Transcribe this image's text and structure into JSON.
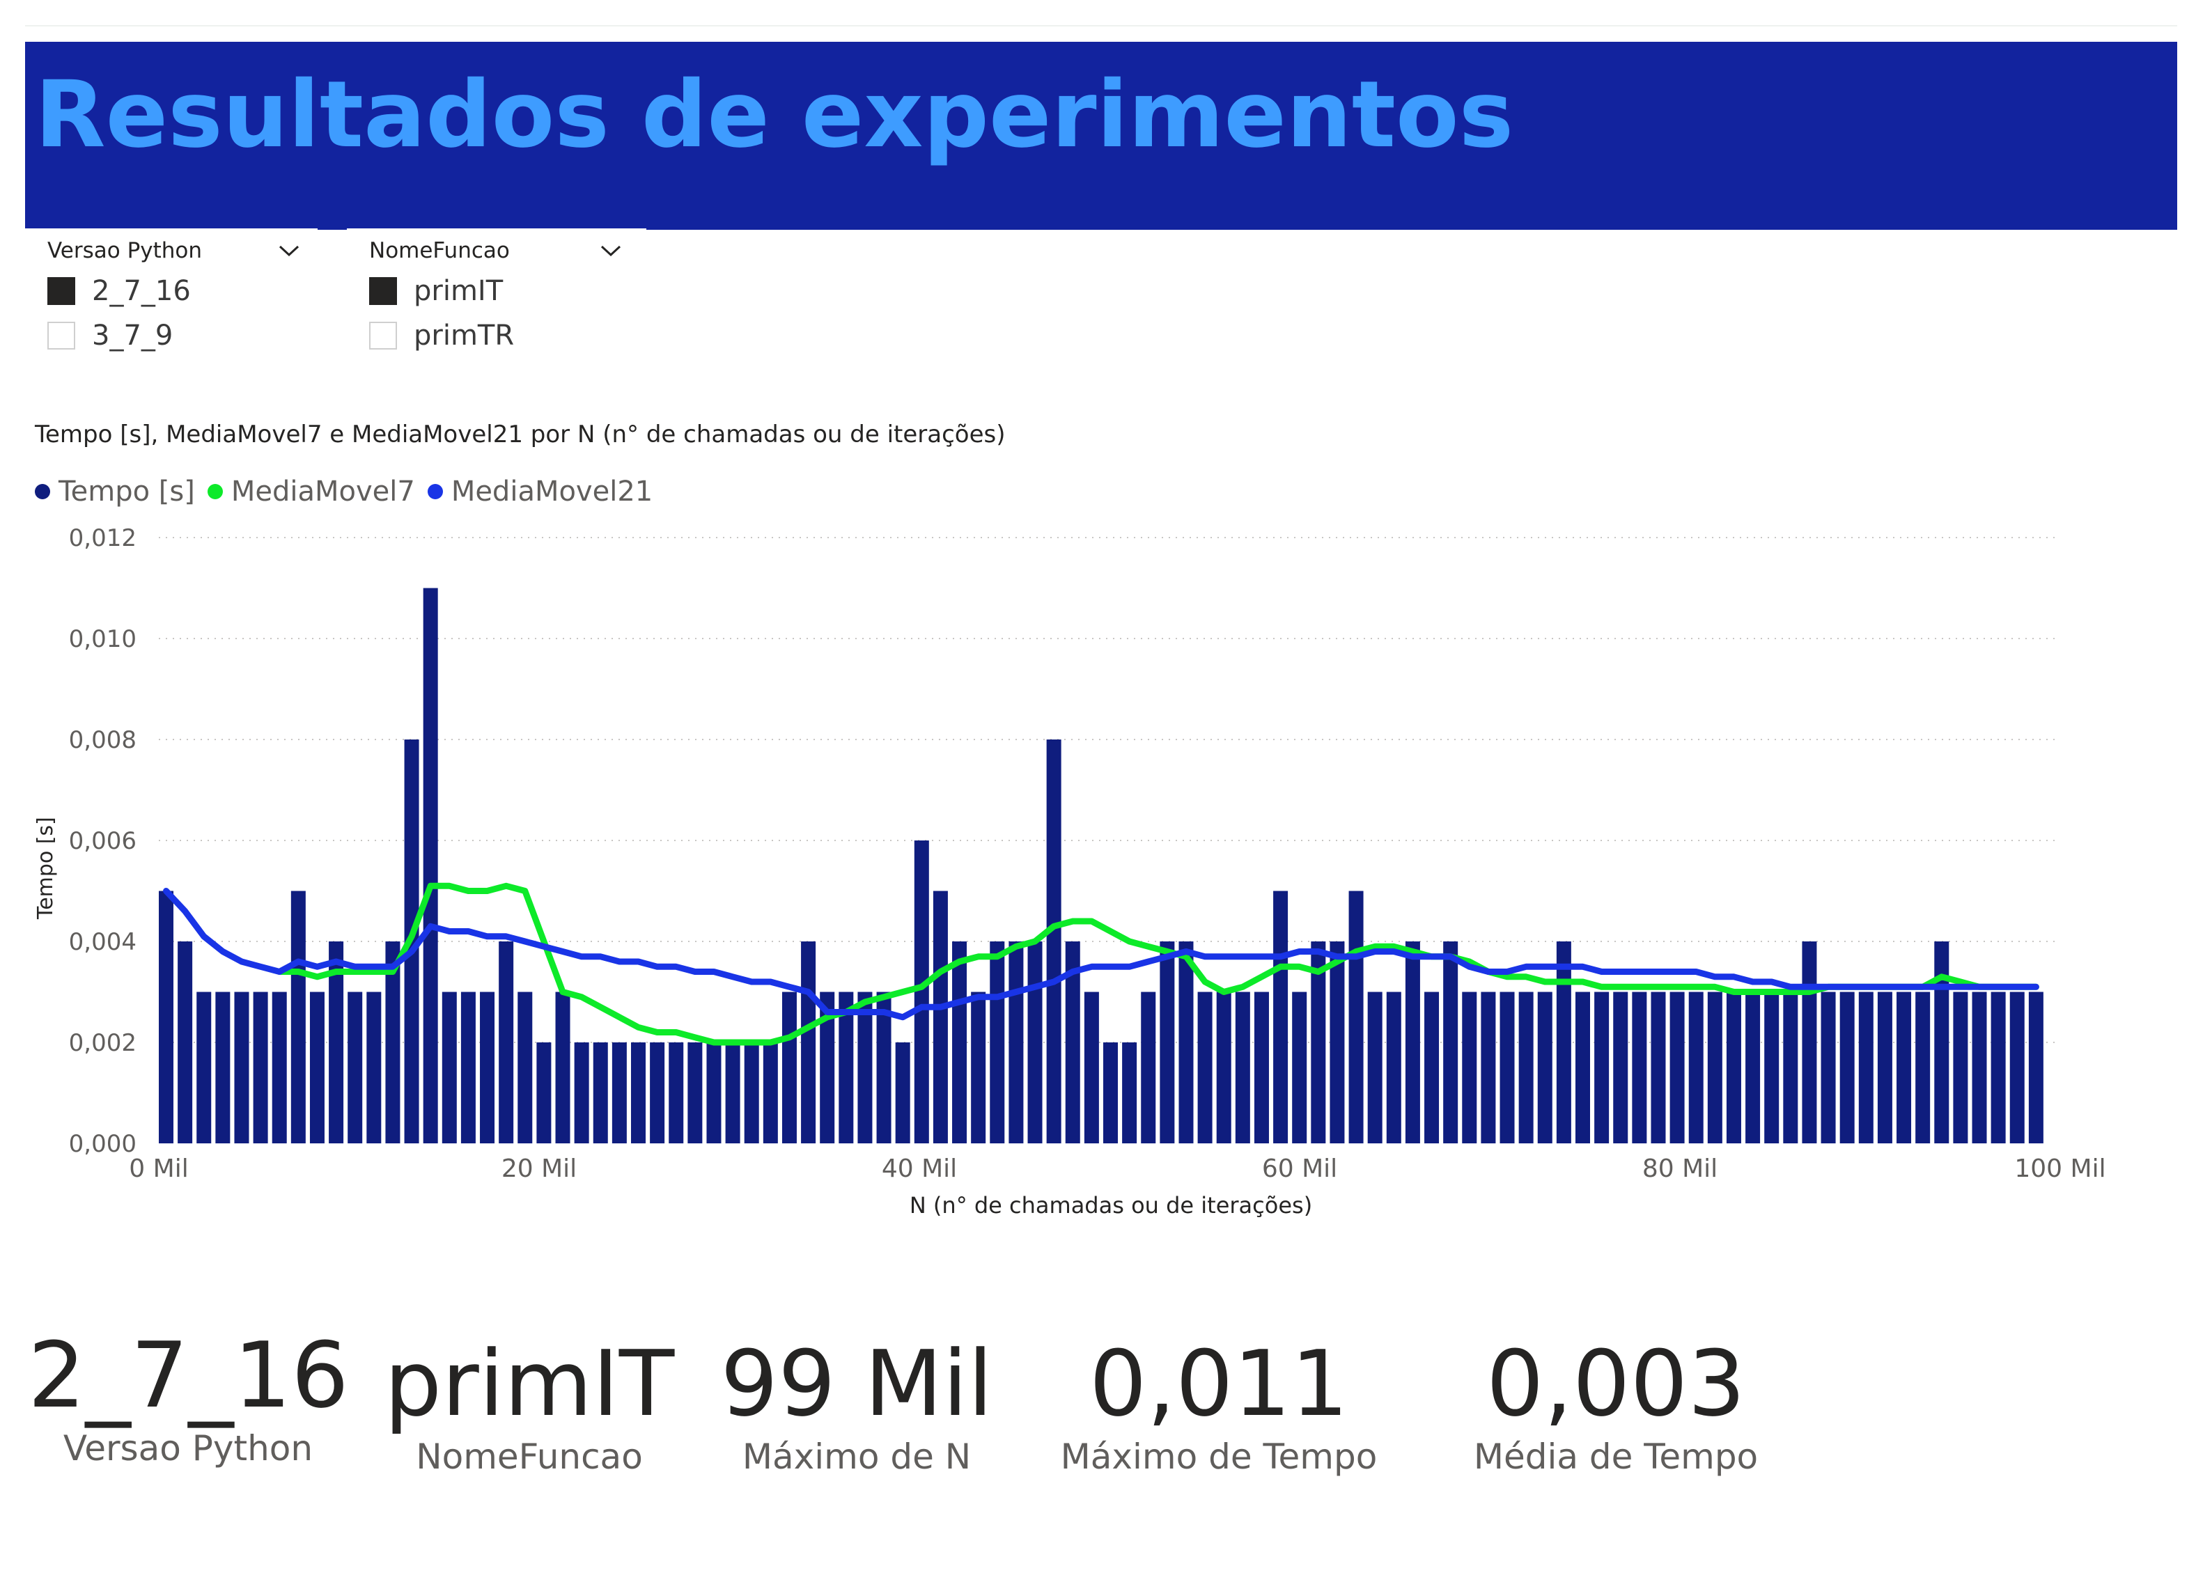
{
  "header": {
    "title": "Resultados de experimentos"
  },
  "slicers": [
    {
      "title": "Versao Python",
      "items": [
        {
          "label": "2_7_16",
          "checked": true
        },
        {
          "label": "3_7_9",
          "checked": false
        }
      ]
    },
    {
      "title": "NomeFuncao",
      "items": [
        {
          "label": "primIT",
          "checked": true
        },
        {
          "label": "primTR",
          "checked": false
        }
      ]
    }
  ],
  "chart": {
    "title": "Tempo [s], MediaMovel7 e MediaMovel21 por N (n° de chamadas ou de iterações)"
  },
  "chart_data": {
    "type": "bar",
    "title": "Tempo [s], MediaMovel7 e MediaMovel21 por N (n° de chamadas ou de iterações)",
    "xlabel": "N (n° de chamadas ou de iterações)",
    "ylabel": "Tempo [s]",
    "xlim": [
      0,
      100000
    ],
    "ylim": [
      0,
      0.012
    ],
    "x_ticks": [
      0,
      20000,
      40000,
      60000,
      80000,
      100000
    ],
    "x_tick_labels": [
      "0 Mil",
      "20 Mil",
      "40 Mil",
      "60 Mil",
      "80 Mil",
      "100 Mil"
    ],
    "y_ticks": [
      0,
      0.002,
      0.004,
      0.006,
      0.008,
      0.01,
      0.012
    ],
    "y_tick_labels": [
      "0,000",
      "0,002",
      "0,004",
      "0,006",
      "0,008",
      "0,010",
      "0,012"
    ],
    "grid": true,
    "legend_position": "top-left",
    "x": [
      0,
      1000,
      2000,
      3000,
      4000,
      5000,
      6000,
      7000,
      8000,
      9000,
      10000,
      11000,
      12000,
      13000,
      14000,
      15000,
      16000,
      17000,
      18000,
      19000,
      20000,
      21000,
      22000,
      23000,
      24000,
      25000,
      26000,
      27000,
      28000,
      29000,
      30000,
      31000,
      32000,
      33000,
      34000,
      35000,
      36000,
      37000,
      38000,
      39000,
      40000,
      41000,
      42000,
      43000,
      44000,
      45000,
      46000,
      47000,
      48000,
      49000,
      50000,
      51000,
      52000,
      53000,
      54000,
      55000,
      56000,
      57000,
      58000,
      59000,
      60000,
      61000,
      62000,
      63000,
      64000,
      65000,
      66000,
      67000,
      68000,
      69000,
      70000,
      71000,
      72000,
      73000,
      74000,
      75000,
      76000,
      77000,
      78000,
      79000,
      80000,
      81000,
      82000,
      83000,
      84000,
      85000,
      86000,
      87000,
      88000,
      89000,
      90000,
      91000,
      92000,
      93000,
      94000,
      95000,
      96000,
      97000,
      98000,
      99000
    ],
    "series": [
      {
        "name": "Tempo [s]",
        "kind": "bar",
        "color": "#0f1d7e",
        "values": [
          0.005,
          0.004,
          0.003,
          0.003,
          0.003,
          0.003,
          0.003,
          0.005,
          0.003,
          0.004,
          0.003,
          0.003,
          0.004,
          0.008,
          0.011,
          0.003,
          0.003,
          0.003,
          0.004,
          0.003,
          0.002,
          0.003,
          0.002,
          0.002,
          0.002,
          0.002,
          0.002,
          0.002,
          0.002,
          0.002,
          0.002,
          0.002,
          0.002,
          0.003,
          0.004,
          0.003,
          0.003,
          0.003,
          0.003,
          0.002,
          0.006,
          0.005,
          0.004,
          0.003,
          0.004,
          0.004,
          0.004,
          0.008,
          0.004,
          0.003,
          0.002,
          0.002,
          0.003,
          0.004,
          0.004,
          0.003,
          0.003,
          0.003,
          0.003,
          0.005,
          0.003,
          0.004,
          0.004,
          0.005,
          0.003,
          0.003,
          0.004,
          0.003,
          0.004,
          0.003,
          0.003,
          0.003,
          0.003,
          0.003,
          0.004,
          0.003,
          0.003,
          0.003,
          0.003,
          0.003,
          0.003,
          0.003,
          0.003,
          0.003,
          0.003,
          0.003,
          0.003,
          0.004,
          0.003,
          0.003,
          0.003,
          0.003,
          0.003,
          0.003,
          0.004,
          0.003,
          0.003,
          0.003,
          0.003,
          0.003
        ]
      },
      {
        "name": "MediaMovel7",
        "kind": "line",
        "color": "#0dea29",
        "values": [
          null,
          null,
          null,
          null,
          null,
          null,
          0.0034,
          0.0034,
          0.0033,
          0.0034,
          0.0034,
          0.0034,
          0.0034,
          0.0041,
          0.0051,
          0.0051,
          0.005,
          0.005,
          0.0051,
          0.005,
          0.004,
          0.003,
          0.0029,
          0.0027,
          0.0025,
          0.0023,
          0.0022,
          0.0022,
          0.0021,
          0.002,
          0.002,
          0.002,
          0.002,
          0.0021,
          0.0023,
          0.0025,
          0.0026,
          0.0028,
          0.0029,
          0.003,
          0.0031,
          0.0034,
          0.0036,
          0.0037,
          0.0037,
          0.0039,
          0.004,
          0.0043,
          0.0044,
          0.0044,
          0.0042,
          0.004,
          0.0039,
          0.0038,
          0.0037,
          0.0032,
          0.003,
          0.0031,
          0.0033,
          0.0035,
          0.0035,
          0.0034,
          0.0036,
          0.0038,
          0.0039,
          0.0039,
          0.0038,
          0.0037,
          0.0037,
          0.0036,
          0.0034,
          0.0033,
          0.0033,
          0.0032,
          0.0032,
          0.0032,
          0.0031,
          0.0031,
          0.0031,
          0.0031,
          0.0031,
          0.0031,
          0.0031,
          0.003,
          0.003,
          0.003,
          0.003,
          0.003,
          0.0031,
          0.0031,
          0.0031,
          0.0031,
          0.0031,
          0.0031,
          0.0033,
          0.0032,
          0.0031,
          0.0031,
          0.0031,
          0.0031
        ]
      },
      {
        "name": "MediaMovel21",
        "kind": "line",
        "color": "#1934e6",
        "values": [
          0.005,
          0.0046,
          0.0041,
          0.0038,
          0.0036,
          0.0035,
          0.0034,
          0.0036,
          0.0035,
          0.0036,
          0.0035,
          0.0035,
          0.0035,
          0.0038,
          0.0043,
          0.0042,
          0.0042,
          0.0041,
          0.0041,
          0.004,
          0.0039,
          0.0038,
          0.0037,
          0.0037,
          0.0036,
          0.0036,
          0.0035,
          0.0035,
          0.0034,
          0.0034,
          0.0033,
          0.0032,
          0.0032,
          0.0031,
          0.003,
          0.0026,
          0.0026,
          0.0026,
          0.0026,
          0.0025,
          0.0027,
          0.0027,
          0.0028,
          0.0029,
          0.0029,
          0.003,
          0.0031,
          0.0032,
          0.0034,
          0.0035,
          0.0035,
          0.0035,
          0.0036,
          0.0037,
          0.0038,
          0.0037,
          0.0037,
          0.0037,
          0.0037,
          0.0037,
          0.0038,
          0.0038,
          0.0037,
          0.0037,
          0.0038,
          0.0038,
          0.0037,
          0.0037,
          0.0037,
          0.0035,
          0.0034,
          0.0034,
          0.0035,
          0.0035,
          0.0035,
          0.0035,
          0.0034,
          0.0034,
          0.0034,
          0.0034,
          0.0034,
          0.0034,
          0.0033,
          0.0033,
          0.0032,
          0.0032,
          0.0031,
          0.0031,
          0.0031,
          0.0031,
          0.0031,
          0.0031,
          0.0031,
          0.0031,
          0.0031,
          0.0031,
          0.0031,
          0.0031,
          0.0031,
          0.0031
        ]
      }
    ]
  },
  "cards": [
    {
      "value": "2_7_16",
      "label": "Versao Python"
    },
    {
      "value": "primIT",
      "label": "NomeFuncao"
    },
    {
      "value": "99 Mil",
      "label": "Máximo de N"
    },
    {
      "value": "0,011",
      "label": "Máximo de Tempo"
    },
    {
      "value": "0,003",
      "label": "Média de Tempo"
    }
  ]
}
